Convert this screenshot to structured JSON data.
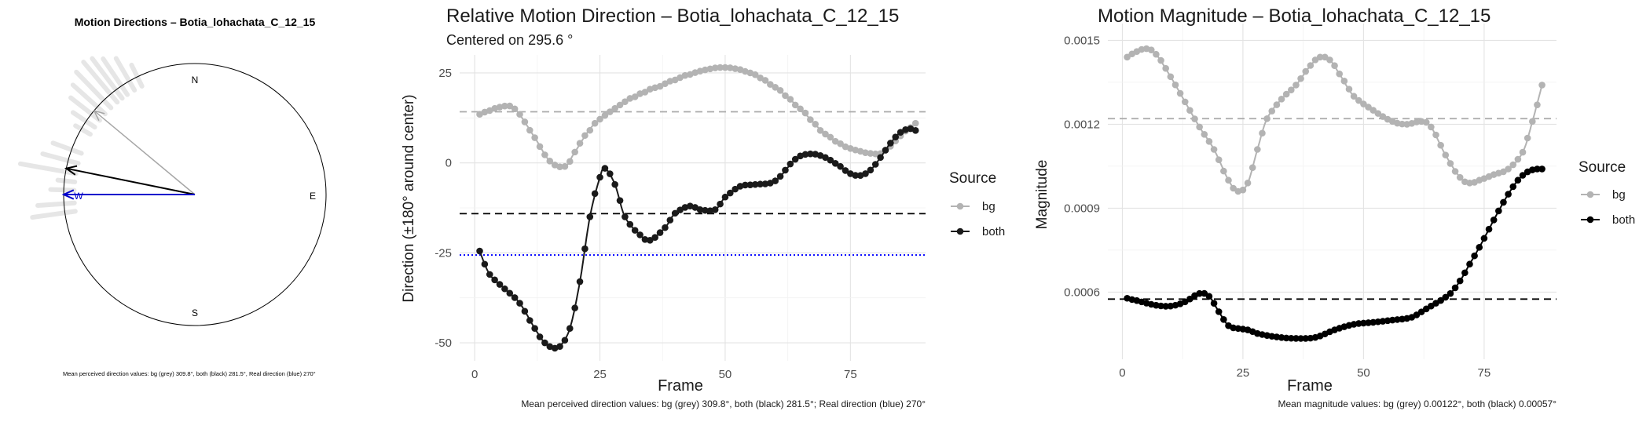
{
  "chart_data": [
    {
      "type": "compass",
      "title": "Motion Directions – Botia_lohachata_C_12_15",
      "cardinals": {
        "n": "N",
        "e": "E",
        "s": "S",
        "w": "W"
      },
      "arrows": [
        {
          "name": "bg",
          "direction_deg": 309.8,
          "color": "#a6a6a6",
          "radius": 1.0
        },
        {
          "name": "both",
          "direction_deg": 281.5,
          "color": "#000000",
          "radius": 1.0
        },
        {
          "name": "real",
          "direction_deg": 270,
          "color": "#0000cc",
          "radius": 1.0
        }
      ],
      "caption": "Mean perceived direction values: bg (grey) 309.8°, both (black) 281.5°, Real direction (blue) 270°"
    },
    {
      "type": "line",
      "title": "Relative Motion Direction – Botia_lohachata_C_12_15",
      "subtitle": "Centered on  295.6 °",
      "xlabel": "Frame",
      "ylabel": "Direction (±180° around center)",
      "xlim": [
        -3,
        90
      ],
      "ylim": [
        -55,
        30
      ],
      "xticks": [
        0,
        25,
        50,
        75
      ],
      "yticks": [
        -50,
        -25,
        0,
        25
      ],
      "grid": true,
      "legend": {
        "title": "Source",
        "entries": [
          "bg",
          "both"
        ],
        "position": "right"
      },
      "series": [
        {
          "name": "bg",
          "color": "#b3b3b3",
          "x": [
            1,
            5,
            8,
            12,
            15,
            18,
            20,
            24,
            30,
            38,
            45,
            50,
            55,
            60,
            65,
            70,
            75,
            80,
            82,
            85,
            88
          ],
          "y": [
            13.5,
            15.5,
            15,
            7,
            0.5,
            -1,
            3,
            11,
            17,
            22,
            25.5,
            26.5,
            25,
            21,
            15,
            8,
            4,
            2.5,
            3.5,
            7.5,
            11
          ]
        },
        {
          "name": "both",
          "color": "#1a1a1a",
          "x": [
            1,
            3,
            6,
            9,
            12,
            14,
            16,
            17,
            19,
            21,
            23,
            25,
            26,
            28,
            30,
            33,
            35,
            38,
            40,
            43,
            45,
            48,
            50,
            53,
            56,
            60,
            64,
            67,
            70,
            73,
            75,
            77,
            79,
            81,
            83,
            85,
            87,
            88
          ],
          "y": [
            -24.5,
            -31,
            -35,
            -39,
            -46,
            -50,
            -51.5,
            -51,
            -46,
            -33,
            -15,
            -4,
            -1.5,
            -6,
            -15,
            -20,
            -21.5,
            -18,
            -14,
            -12,
            -13,
            -13,
            -9.5,
            -6.5,
            -6,
            -5,
            1,
            2.5,
            1.5,
            -1,
            -3,
            -3.5,
            -2,
            1.5,
            5.5,
            8.5,
            9.5,
            9
          ]
        }
      ],
      "hlines": [
        {
          "name": "bg-mean",
          "y": 14.2,
          "color": "#aaaaaa",
          "style": "dashed"
        },
        {
          "name": "both-mean",
          "y": -14.1,
          "color": "#000000",
          "style": "dashed"
        },
        {
          "name": "real-direction",
          "y": -25.6,
          "color": "#0000ff",
          "style": "dotted"
        }
      ],
      "caption": "Mean perceived direction values: bg (grey) 309.8°, both (black) 281.5°; Real direction (blue) 270°"
    },
    {
      "type": "line",
      "title": "Motion Magnitude – Botia_lohachata_C_12_15",
      "xlabel": "Frame",
      "ylabel": "Magnitude",
      "xlim": [
        -3,
        90
      ],
      "ylim": [
        0.00036,
        0.00156
      ],
      "xticks": [
        0,
        25,
        50,
        75
      ],
      "yticks": [
        0.0006,
        0.0009,
        0.0012,
        0.0015
      ],
      "grid": true,
      "legend": {
        "title": "Source",
        "entries": [
          "bg",
          "both"
        ],
        "position": "right"
      },
      "series": [
        {
          "name": "bg",
          "color": "#b3b3b3",
          "x": [
            1,
            3,
            5,
            7,
            10,
            13,
            16,
            19,
            22,
            24,
            26,
            28,
            30,
            33,
            36,
            39,
            41,
            43,
            45,
            48,
            52,
            56,
            59,
            62,
            64,
            67,
            70,
            72,
            74,
            77,
            80,
            83,
            85,
            87
          ],
          "y": [
            0.00144,
            0.00146,
            0.00147,
            0.00145,
            0.00137,
            0.00128,
            0.00119,
            0.00111,
            0.001,
            0.00096,
            0.00099,
            0.00111,
            0.00122,
            0.00129,
            0.00134,
            0.00141,
            0.00144,
            0.00143,
            0.00138,
            0.0013,
            0.00125,
            0.00121,
            0.0012,
            0.00121,
            0.00119,
            0.00109,
            0.00101,
            0.00099,
            0.001,
            0.00102,
            0.00104,
            0.0011,
            0.00121,
            0.00134
          ]
        },
        {
          "name": "both",
          "color": "#000000",
          "x": [
            1,
            4,
            7,
            10,
            13,
            16,
            18,
            20,
            22,
            24,
            26,
            28,
            31,
            35,
            40,
            44,
            48,
            52,
            56,
            60,
            63,
            66,
            68,
            70,
            72,
            74,
            76,
            78,
            80,
            82,
            84,
            86,
            87
          ],
          "y": [
            0.000578,
            0.000565,
            0.000553,
            0.00055,
            0.000565,
            0.000595,
            0.000585,
            0.00053,
            0.00048,
            0.00047,
            0.000465,
            0.000452,
            0.000442,
            0.000435,
            0.000438,
            0.000465,
            0.000485,
            0.000492,
            0.0005,
            0.00051,
            0.00054,
            0.00057,
            0.000595,
            0.00064,
            0.0007,
            0.00076,
            0.000825,
            0.00089,
            0.00095,
            0.001,
            0.00103,
            0.00104,
            0.00104
          ]
        }
      ],
      "hlines": [
        {
          "name": "bg-mean",
          "y": 0.00122,
          "color": "#aaaaaa",
          "style": "dashed"
        },
        {
          "name": "both-mean",
          "y": 0.000575,
          "color": "#000000",
          "style": "dashed"
        }
      ],
      "caption": "Mean magnitude values: bg (grey) 0.00122°, both (black) 0.00057°"
    }
  ]
}
